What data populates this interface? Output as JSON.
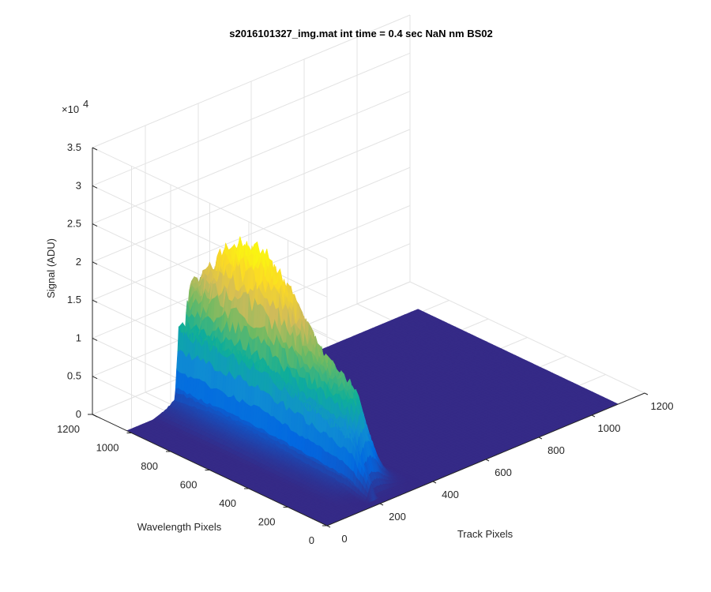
{
  "chart_data": {
    "type": "surface",
    "title": "s2016101327_img.mat int time = 0.4 sec  NaN nm BS02",
    "xlabel": "Track Pixels",
    "ylabel": "Wavelength Pixels",
    "zlabel": "Signal (ADU)",
    "zscale_label": "×10",
    "zscale_exponent": "4",
    "xlim": [
      0,
      1200
    ],
    "ylim": [
      0,
      1200
    ],
    "zlim": [
      0,
      35000
    ],
    "xticks": [
      "0",
      "200",
      "400",
      "600",
      "800",
      "1000",
      "1200"
    ],
    "yticks": [
      "0",
      "200",
      "400",
      "600",
      "800",
      "1000",
      "1200"
    ],
    "zticks": [
      "0",
      "0.5",
      "1",
      "1.5",
      "2",
      "2.5",
      "3",
      "3.5"
    ],
    "grid": true,
    "colormap": [
      "#352a87",
      "#0268e1",
      "#108ed2",
      "#0fae99",
      "#6dba63",
      "#d1bb5a",
      "#fbd926",
      "#f9fb0e"
    ],
    "surface": {
      "x_range": [
        0,
        1100
      ],
      "y_range": [
        0,
        1024
      ],
      "peak_signal": 24500,
      "peak_track_pixel": 240,
      "spectral_profile": [
        [
          0,
          0
        ],
        [
          60,
          200
        ],
        [
          100,
          2000
        ],
        [
          150,
          8000
        ],
        [
          200,
          12000
        ],
        [
          260,
          13000
        ],
        [
          320,
          14000
        ],
        [
          400,
          16000
        ],
        [
          480,
          19000
        ],
        [
          540,
          21500
        ],
        [
          600,
          23000
        ],
        [
          660,
          24000
        ],
        [
          720,
          24200
        ],
        [
          780,
          23800
        ],
        [
          830,
          22500
        ],
        [
          870,
          21500
        ],
        [
          900,
          20000
        ],
        [
          940,
          18500
        ],
        [
          980,
          17000
        ],
        [
          1024,
          16000
        ]
      ],
      "track_profile": [
        [
          0,
          0
        ],
        [
          100,
          0
        ],
        [
          150,
          0.04
        ],
        [
          185,
          0.1
        ],
        [
          200,
          0.28
        ],
        [
          215,
          0.55
        ],
        [
          230,
          0.85
        ],
        [
          245,
          1.0
        ],
        [
          260,
          0.92
        ],
        [
          275,
          0.72
        ],
        [
          290,
          0.5
        ],
        [
          305,
          0.32
        ],
        [
          320,
          0.18
        ],
        [
          335,
          0.08
        ],
        [
          350,
          0.03
        ],
        [
          370,
          0
        ],
        [
          1100,
          0
        ]
      ],
      "shoulder": {
        "track_pixel": 200,
        "signal": 11000
      }
    }
  }
}
